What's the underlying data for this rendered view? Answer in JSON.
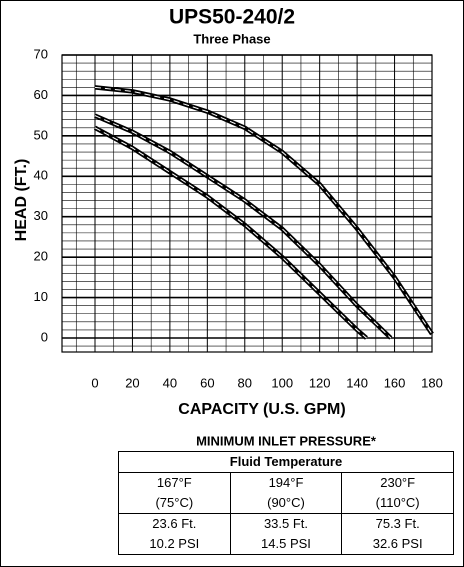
{
  "chart_data": {
    "type": "line",
    "title": "UPS50-240/2",
    "subtitle": "Three Phase",
    "xlabel": "CAPACITY (U.S. GPM)",
    "ylabel": "HEAD (FT.)",
    "xlim": [
      0,
      180
    ],
    "xticks": [
      0,
      20,
      40,
      60,
      80,
      100,
      120,
      140,
      160,
      180
    ],
    "ylim": [
      0,
      70
    ],
    "yticks": [
      0,
      10,
      20,
      30,
      40,
      50,
      60,
      70
    ],
    "grid": true,
    "series": [
      {
        "color": "#000000",
        "x": [
          0,
          20,
          40,
          60,
          80,
          100,
          120,
          140,
          145
        ],
        "values": [
          52,
          47,
          41,
          35,
          28,
          20,
          11,
          2,
          0
        ]
      },
      {
        "color": "#000000",
        "x": [
          0,
          20,
          40,
          60,
          80,
          100,
          120,
          140,
          158
        ],
        "values": [
          55,
          51,
          46,
          40,
          34,
          27,
          18,
          8,
          0
        ]
      },
      {
        "color": "#000000",
        "x": [
          0,
          20,
          40,
          60,
          80,
          100,
          120,
          140,
          160,
          180
        ],
        "values": [
          62,
          61,
          59,
          56,
          52,
          46,
          38,
          27,
          15,
          1
        ]
      }
    ]
  },
  "table": {
    "title": "MINIMUM INLET PRESSURE*",
    "header": "Fluid Temperature",
    "rows": [
      [
        "167°F",
        "194°F",
        "230°F"
      ],
      [
        "(75°C)",
        "(90°C)",
        "(110°C)"
      ],
      [
        "23.6 Ft.",
        "33.5 Ft.",
        "75.3 Ft."
      ],
      [
        "10.2 PSI",
        "14.5 PSI",
        "32.6 PSI"
      ]
    ]
  }
}
